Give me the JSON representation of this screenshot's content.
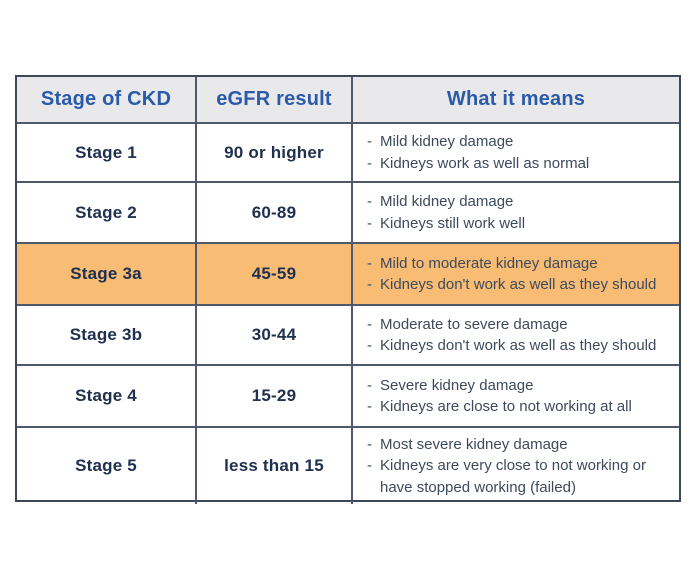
{
  "chart_data": {
    "type": "table",
    "columns": [
      "Stage of CKD",
      "eGFR result",
      "What it means"
    ],
    "bullet_marker": "-",
    "highlighted_row": "Stage 3a",
    "highlight_color": "#f8bc75",
    "rows": [
      {
        "stage": "Stage 1",
        "egfr": "90 or higher",
        "meanings": [
          "Mild kidney damage",
          "Kidneys work as well as normal"
        ],
        "highlighted": false
      },
      {
        "stage": "Stage 2",
        "egfr": "60-89",
        "meanings": [
          "Mild kidney damage",
          "Kidneys still work well"
        ],
        "highlighted": false
      },
      {
        "stage": "Stage 3a",
        "egfr": "45-59",
        "meanings": [
          "Mild to moderate kidney damage",
          "Kidneys don't work as well as they should"
        ],
        "highlighted": true
      },
      {
        "stage": "Stage 3b",
        "egfr": "30-44",
        "meanings": [
          "Moderate to severe damage",
          "Kidneys don't work as well as they should"
        ],
        "highlighted": false
      },
      {
        "stage": "Stage 4",
        "egfr": "15-29",
        "meanings": [
          "Severe kidney damage",
          "Kidneys are close to not working at all"
        ],
        "highlighted": false
      },
      {
        "stage": "Stage 5",
        "egfr": "less than 15",
        "meanings": [
          "Most severe kidney damage",
          "Kidneys are very close to not working or have stopped working (failed)"
        ],
        "highlighted": false
      }
    ]
  },
  "colors": {
    "header_text": "#2b5aa8",
    "header_bg": "#e9e9eb",
    "highlight_bg": "#f8bc75",
    "stage_text": "#20304f",
    "meaning_text": "#3d4a5c",
    "border_outer": "#3f4859",
    "border_inner": "#4f596b"
  }
}
